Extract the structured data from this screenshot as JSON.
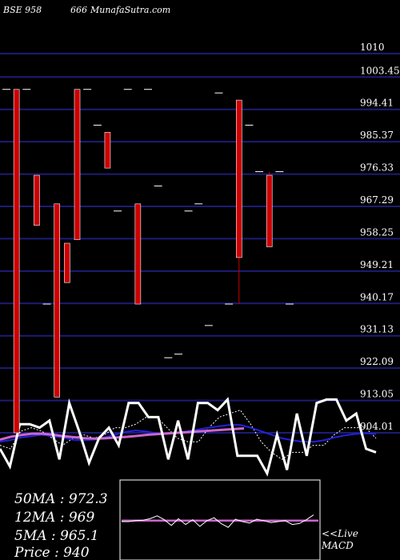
{
  "header": {
    "code": "BSE 958",
    "scrip": "666",
    "site": "MunafaSutra.com"
  },
  "stats": {
    "ma50": "50MA : 972.3",
    "ma12": "12MA : 969",
    "ma5": "5MA : 965.1",
    "price": "Price   : 940"
  },
  "macd_label": {
    "line1": "<<Live",
    "line2": "MACD"
  },
  "colors": {
    "background": "#000000",
    "grid": "#1c1c78",
    "candle_up": "#ffffff",
    "candle_down": "#cc0000",
    "ma_blue": "#2222dd",
    "ma_pink": "#cc66cc",
    "indicator": "#ffffff"
  },
  "chart_data": {
    "type": "candlestick",
    "y_ticks": [
      "1010",
      "1003.45",
      "994.41",
      "985.37",
      "976.33",
      "967.29",
      "958.25",
      "949.21",
      "940.17",
      "931.13",
      "922.09",
      "913.05",
      "904.01"
    ],
    "ylim": [
      902,
      1012
    ],
    "candles": [
      {
        "open": 1000,
        "close": 1000,
        "high": 1000,
        "low": 1000
      },
      {
        "open": 1000,
        "close": 904,
        "high": 1000,
        "low": 904
      },
      {
        "open": 1000,
        "close": 1000,
        "high": 1000,
        "low": 1000
      },
      {
        "open": 976,
        "close": 962,
        "high": 976,
        "low": 962
      },
      {
        "open": 940,
        "close": 940,
        "high": 940,
        "low": 940
      },
      {
        "open": 968,
        "close": 914,
        "high": 968,
        "low": 914
      },
      {
        "open": 957,
        "close": 946,
        "high": 957,
        "low": 946
      },
      {
        "open": 1000,
        "close": 958,
        "high": 1000,
        "low": 958
      },
      {
        "open": 1000,
        "close": 1000,
        "high": 1000,
        "low": 1000
      },
      {
        "open": 990,
        "close": 990,
        "high": 990,
        "low": 990
      },
      {
        "open": 988,
        "close": 978,
        "high": 988,
        "low": 978
      },
      {
        "open": 966,
        "close": 966,
        "high": 966,
        "low": 966
      },
      {
        "open": 1000,
        "close": 1000,
        "high": 1000,
        "low": 1000
      },
      {
        "open": 968,
        "close": 940,
        "high": 968,
        "low": 940
      },
      {
        "open": 1000,
        "close": 1000,
        "high": 1000,
        "low": 1000
      },
      {
        "open": 973,
        "close": 973,
        "high": 973,
        "low": 973
      },
      {
        "open": 925,
        "close": 925,
        "high": 925,
        "low": 925
      },
      {
        "open": 926,
        "close": 926,
        "high": 926,
        "low": 926
      },
      {
        "open": 966,
        "close": 966,
        "high": 966,
        "low": 966
      },
      {
        "open": 968,
        "close": 968,
        "high": 968,
        "low": 968
      },
      {
        "open": 934,
        "close": 934,
        "high": 934,
        "low": 934
      },
      {
        "open": 999,
        "close": 999,
        "high": 999,
        "low": 999
      },
      {
        "open": 940,
        "close": 940,
        "high": 940,
        "low": 940
      },
      {
        "open": 997,
        "close": 953,
        "high": 997,
        "low": 940
      },
      {
        "open": 990,
        "close": 990,
        "high": 990,
        "low": 990
      },
      {
        "open": 977,
        "close": 977,
        "high": 977,
        "low": 977
      },
      {
        "open": 976,
        "close": 956,
        "high": 977,
        "low": 956
      },
      {
        "open": 977,
        "close": 977,
        "high": 977,
        "low": 977
      },
      {
        "open": 940,
        "close": 940,
        "high": 940,
        "low": 940
      }
    ],
    "indicator_main": [
      10,
      5,
      17,
      17,
      16,
      18,
      7,
      23,
      15,
      6,
      13,
      16,
      11,
      23,
      23,
      19,
      19,
      7,
      18,
      7,
      23,
      23,
      21,
      24,
      8,
      8,
      8,
      3,
      14,
      4,
      20,
      8,
      23,
      24,
      24,
      18,
      20,
      10,
      9
    ],
    "indicator_dotted": [
      11,
      10,
      15,
      16,
      15,
      13,
      11,
      13,
      14,
      13,
      14,
      16,
      16,
      17,
      19,
      19,
      16,
      13,
      12,
      12,
      16,
      19,
      20,
      21,
      17,
      12,
      9,
      7,
      9,
      9,
      11,
      11,
      14,
      16,
      16,
      16,
      13
    ],
    "ma_blue": [
      12,
      12.5,
      13.2,
      13.6,
      14,
      13.6,
      13.2,
      12.6,
      12.4,
      12.6,
      13.2,
      14,
      14.8,
      15.2,
      14.9,
      14.4,
      14.3,
      14.6,
      15,
      15.5,
      16,
      16.4,
      16.8,
      16.8,
      16,
      15,
      14,
      13,
      12.4,
      12,
      12,
      12.4,
      13.2,
      13.8,
      14.2,
      14.4,
      14.2
    ],
    "ma_pink": [
      12.6,
      13.4,
      13.9,
      14.3,
      14.3,
      14,
      13.6,
      13.3,
      13,
      12.9,
      13,
      13.2,
      13.4,
      13.7,
      14,
      14.2,
      14.4,
      14.6,
      14.8,
      15,
      15.2,
      15.4,
      15.6,
      15.8
    ],
    "macd_line": [
      0,
      0,
      0.2,
      0.3,
      0.6,
      1.2,
      0.4,
      -0.8,
      0.6,
      -0.6,
      0.4,
      -1.0,
      0.2,
      0.8,
      -0.4,
      -1.2,
      0.5,
      0,
      -0.3,
      0.5,
      0.2,
      -0.2,
      0,
      0.2,
      -0.6,
      -0.4,
      0.4,
      1.4
    ],
    "macd_signal": [
      0.2,
      0.2,
      0.2,
      0.2,
      0.2,
      0.2,
      0.2,
      0.2,
      0.2,
      0.2,
      0.2,
      0.2,
      0.2,
      0.2,
      0.2,
      0.2,
      0.2,
      0.2,
      0.2,
      0.2,
      0.2,
      0.2,
      0.2,
      0.2,
      0.2,
      0.2,
      0.2,
      0.2
    ]
  }
}
